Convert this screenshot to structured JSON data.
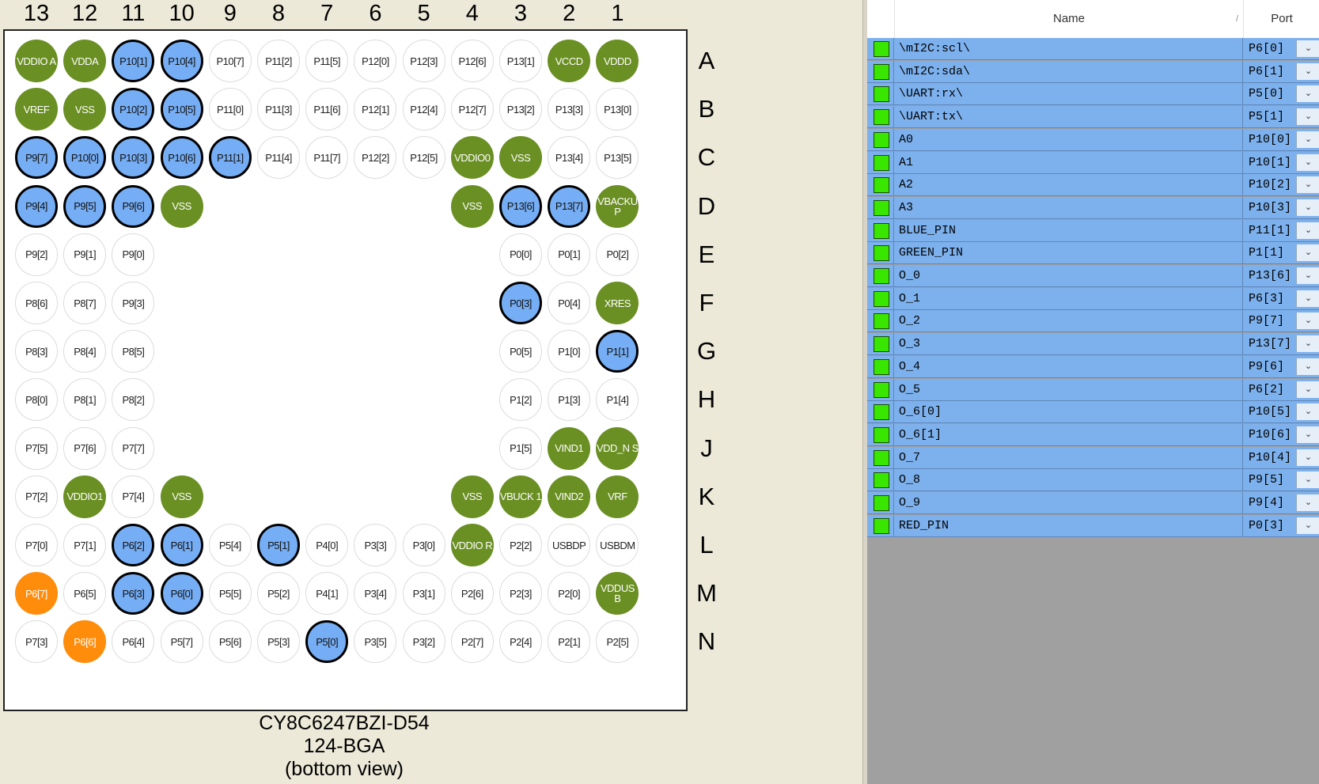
{
  "columns": [
    "13",
    "12",
    "11",
    "10",
    "9",
    "8",
    "7",
    "6",
    "5",
    "4",
    "3",
    "2",
    "1"
  ],
  "rows": [
    "A",
    "B",
    "C",
    "D",
    "E",
    "F",
    "G",
    "H",
    "J",
    "K",
    "L",
    "M",
    "N"
  ],
  "pin_colors": {
    "free": "#ffffff",
    "used": "#76aef5",
    "power": "#6a8f23",
    "orange": "#ff8c0a"
  },
  "pin_grid": [
    [
      [
        "VDDIO A",
        "power"
      ],
      [
        "VDDA",
        "power"
      ],
      [
        "P10[1]",
        "used"
      ],
      [
        "P10[4]",
        "used"
      ],
      [
        "P10[7]",
        "free"
      ],
      [
        "P11[2]",
        "free"
      ],
      [
        "P11[5]",
        "free"
      ],
      [
        "P12[0]",
        "free"
      ],
      [
        "P12[3]",
        "free"
      ],
      [
        "P12[6]",
        "free"
      ],
      [
        "P13[1]",
        "free"
      ],
      [
        "VCCD",
        "power"
      ],
      [
        "VDDD",
        "power"
      ]
    ],
    [
      [
        "VREF",
        "power"
      ],
      [
        "VSS",
        "power"
      ],
      [
        "P10[2]",
        "used"
      ],
      [
        "P10[5]",
        "used"
      ],
      [
        "P11[0]",
        "free"
      ],
      [
        "P11[3]",
        "free"
      ],
      [
        "P11[6]",
        "free"
      ],
      [
        "P12[1]",
        "free"
      ],
      [
        "P12[4]",
        "free"
      ],
      [
        "P12[7]",
        "free"
      ],
      [
        "P13[2]",
        "free"
      ],
      [
        "P13[3]",
        "free"
      ],
      [
        "P13[0]",
        "free"
      ]
    ],
    [
      [
        "P9[7]",
        "used"
      ],
      [
        "P10[0]",
        "used"
      ],
      [
        "P10[3]",
        "used"
      ],
      [
        "P10[6]",
        "used"
      ],
      [
        "P11[1]",
        "used"
      ],
      [
        "P11[4]",
        "free"
      ],
      [
        "P11[7]",
        "free"
      ],
      [
        "P12[2]",
        "free"
      ],
      [
        "P12[5]",
        "free"
      ],
      [
        "VDDIO0",
        "power"
      ],
      [
        "VSS",
        "power"
      ],
      [
        "P13[4]",
        "free"
      ],
      [
        "P13[5]",
        "free"
      ]
    ],
    [
      [
        "P9[4]",
        "used"
      ],
      [
        "P9[5]",
        "used"
      ],
      [
        "P9[6]",
        "used"
      ],
      [
        "VSS",
        "power"
      ],
      null,
      null,
      null,
      null,
      null,
      [
        "VSS",
        "power"
      ],
      [
        "P13[6]",
        "used"
      ],
      [
        "P13[7]",
        "used"
      ],
      [
        "VBACKU P",
        "power"
      ]
    ],
    [
      [
        "P9[2]",
        "free"
      ],
      [
        "P9[1]",
        "free"
      ],
      [
        "P9[0]",
        "free"
      ],
      null,
      null,
      null,
      null,
      null,
      null,
      null,
      [
        "P0[0]",
        "free"
      ],
      [
        "P0[1]",
        "free"
      ],
      [
        "P0[2]",
        "free"
      ]
    ],
    [
      [
        "P8[6]",
        "free"
      ],
      [
        "P8[7]",
        "free"
      ],
      [
        "P9[3]",
        "free"
      ],
      null,
      null,
      null,
      null,
      null,
      null,
      null,
      [
        "P0[3]",
        "used"
      ],
      [
        "P0[4]",
        "free"
      ],
      [
        "XRES",
        "power"
      ]
    ],
    [
      [
        "P8[3]",
        "free"
      ],
      [
        "P8[4]",
        "free"
      ],
      [
        "P8[5]",
        "free"
      ],
      null,
      null,
      null,
      null,
      null,
      null,
      null,
      [
        "P0[5]",
        "free"
      ],
      [
        "P1[0]",
        "free"
      ],
      [
        "P1[1]",
        "used"
      ]
    ],
    [
      [
        "P8[0]",
        "free"
      ],
      [
        "P8[1]",
        "free"
      ],
      [
        "P8[2]",
        "free"
      ],
      null,
      null,
      null,
      null,
      null,
      null,
      null,
      [
        "P1[2]",
        "free"
      ],
      [
        "P1[3]",
        "free"
      ],
      [
        "P1[4]",
        "free"
      ]
    ],
    [
      [
        "P7[5]",
        "free"
      ],
      [
        "P7[6]",
        "free"
      ],
      [
        "P7[7]",
        "free"
      ],
      null,
      null,
      null,
      null,
      null,
      null,
      null,
      [
        "P1[5]",
        "free"
      ],
      [
        "VIND1",
        "power"
      ],
      [
        "VDD_N S",
        "power"
      ]
    ],
    [
      [
        "P7[2]",
        "free"
      ],
      [
        "VDDIO1",
        "power"
      ],
      [
        "P7[4]",
        "free"
      ],
      [
        "VSS",
        "power"
      ],
      null,
      null,
      null,
      null,
      null,
      [
        "VSS",
        "power"
      ],
      [
        "VBUCK 1",
        "power"
      ],
      [
        "VIND2",
        "power"
      ],
      [
        "VRF",
        "power"
      ]
    ],
    [
      [
        "P7[0]",
        "free"
      ],
      [
        "P7[1]",
        "free"
      ],
      [
        "P6[2]",
        "used"
      ],
      [
        "P6[1]",
        "used"
      ],
      [
        "P5[4]",
        "free"
      ],
      [
        "P5[1]",
        "used"
      ],
      [
        "P4[0]",
        "free"
      ],
      [
        "P3[3]",
        "free"
      ],
      [
        "P3[0]",
        "free"
      ],
      [
        "VDDIO R",
        "power"
      ],
      [
        "P2[2]",
        "free"
      ],
      [
        "USBDP",
        "free"
      ],
      [
        "USBDM",
        "free"
      ]
    ],
    [
      [
        "P6[7]",
        "orange"
      ],
      [
        "P6[5]",
        "free"
      ],
      [
        "P6[3]",
        "used"
      ],
      [
        "P6[0]",
        "used"
      ],
      [
        "P5[5]",
        "free"
      ],
      [
        "P5[2]",
        "free"
      ],
      [
        "P4[1]",
        "free"
      ],
      [
        "P3[4]",
        "free"
      ],
      [
        "P3[1]",
        "free"
      ],
      [
        "P2[6]",
        "free"
      ],
      [
        "P2[3]",
        "free"
      ],
      [
        "P2[0]",
        "free"
      ],
      [
        "VDDUS B",
        "power"
      ]
    ],
    [
      [
        "P7[3]",
        "free"
      ],
      [
        "P6[6]",
        "orange"
      ],
      [
        "P6[4]",
        "free"
      ],
      [
        "P5[7]",
        "free"
      ],
      [
        "P5[6]",
        "free"
      ],
      [
        "P5[3]",
        "free"
      ],
      [
        "P5[0]",
        "used"
      ],
      [
        "P3[5]",
        "free"
      ],
      [
        "P3[2]",
        "free"
      ],
      [
        "P2[7]",
        "free"
      ],
      [
        "P2[4]",
        "free"
      ],
      [
        "P2[1]",
        "free"
      ],
      [
        "P2[5]",
        "free"
      ]
    ]
  ],
  "caption": {
    "part": "CY8C6247BZI-D54",
    "package": "124-BGA",
    "view": "(bottom view)"
  },
  "table": {
    "headers": {
      "name": "Name",
      "port": "Port"
    },
    "rows": [
      {
        "name": "\\mI2C:scl\\",
        "port": "P6[0]"
      },
      {
        "name": "\\mI2C:sda\\",
        "port": "P6[1]"
      },
      {
        "name": "\\UART:rx\\",
        "port": "P5[0]"
      },
      {
        "name": "\\UART:tx\\",
        "port": "P5[1]"
      },
      {
        "name": "A0",
        "port": "P10[0]"
      },
      {
        "name": "A1",
        "port": "P10[1]"
      },
      {
        "name": "A2",
        "port": "P10[2]"
      },
      {
        "name": "A3",
        "port": "P10[3]"
      },
      {
        "name": "BLUE_PIN",
        "port": "P11[1]"
      },
      {
        "name": "GREEN_PIN",
        "port": "P1[1]"
      },
      {
        "name": "O_0",
        "port": "P13[6]"
      },
      {
        "name": "O_1",
        "port": "P6[3]"
      },
      {
        "name": "O_2",
        "port": "P9[7]"
      },
      {
        "name": "O_3",
        "port": "P13[7]"
      },
      {
        "name": "O_4",
        "port": "P9[6]"
      },
      {
        "name": "O_5",
        "port": "P6[2]"
      },
      {
        "name": "O_6[0]",
        "port": "P10[5]"
      },
      {
        "name": "O_6[1]",
        "port": "P10[6]"
      },
      {
        "name": "O_7",
        "port": "P10[4]"
      },
      {
        "name": "O_8",
        "port": "P9[5]"
      },
      {
        "name": "O_9",
        "port": "P9[4]"
      },
      {
        "name": "RED_PIN",
        "port": "P0[3]"
      }
    ],
    "checkbox_color": "#39e600",
    "row_color": "#7db1ee"
  }
}
